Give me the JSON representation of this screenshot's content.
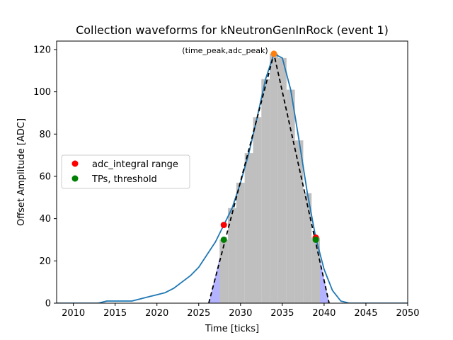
{
  "chart_data": {
    "type": "line",
    "title": "Collection waveforms for kNeutronGenInRock (event 1)",
    "xlabel": "Time [ticks]",
    "ylabel": "Offset Amplitude [ADC]",
    "xlim": [
      2008,
      2050
    ],
    "ylim": [
      0,
      124
    ],
    "xticks": [
      2010,
      2015,
      2020,
      2025,
      2030,
      2035,
      2040,
      2045,
      2050
    ],
    "yticks": [
      0,
      20,
      40,
      60,
      80,
      100,
      120
    ],
    "grid": false,
    "legend_position": "center-left",
    "legend": [
      {
        "label": "adc_integral range",
        "color": "#ff0000"
      },
      {
        "label": "TPs, threshold",
        "color": "#008000"
      }
    ],
    "waveform": {
      "color": "#1f77b4",
      "x": [
        2008,
        2009,
        2010,
        2011,
        2012,
        2013,
        2014,
        2015,
        2016,
        2017,
        2018,
        2019,
        2020,
        2021,
        2022,
        2023,
        2024,
        2025,
        2026,
        2027,
        2028,
        2029,
        2030,
        2031,
        2032,
        2033,
        2034,
        2035,
        2036,
        2037,
        2038,
        2039,
        2040,
        2041,
        2042,
        2043,
        2044,
        2045,
        2046,
        2047,
        2048,
        2049,
        2050
      ],
      "y": [
        0,
        0,
        0,
        0,
        0,
        0,
        1,
        1,
        1,
        1,
        2,
        3,
        4,
        5,
        7,
        10,
        13,
        17,
        23,
        29,
        37,
        45,
        57,
        71,
        88,
        106,
        118,
        116,
        101,
        77,
        52,
        31,
        16,
        6,
        1,
        0,
        0,
        0,
        0,
        0,
        0,
        0,
        0
      ]
    },
    "bars": {
      "color": "#bfbfbf",
      "x": [
        2028,
        2029,
        2030,
        2031,
        2032,
        2033,
        2034,
        2035,
        2036,
        2037,
        2038,
        2039
      ],
      "values": [
        30,
        45,
        57,
        71,
        88,
        106,
        118,
        116,
        101,
        77,
        52,
        31
      ]
    },
    "shaded_edges": {
      "color": "#b3b3ff",
      "left": {
        "x": [
          2026.2,
          2028,
          2028
        ],
        "y": [
          0,
          30,
          0
        ]
      },
      "right": {
        "x": [
          2039,
          2039,
          2040.6
        ],
        "y": [
          31,
          0,
          0
        ]
      }
    },
    "triangle": {
      "color": "#000000",
      "x": [
        2026.2,
        2034,
        2040.6
      ],
      "y": [
        0,
        118,
        0
      ]
    },
    "adc_integral_points": {
      "color": "#ff0000",
      "x": [
        2028,
        2039
      ],
      "y": [
        37,
        31
      ]
    },
    "tp_points": {
      "color": "#008000",
      "x": [
        2028,
        2039
      ],
      "y": [
        30,
        30
      ]
    },
    "peak_point": {
      "color": "#ff7f0e",
      "x": 2034,
      "y": 118
    },
    "annotation": {
      "text": "(time_peak,adc_peak)",
      "x": 2034,
      "y": 118
    }
  }
}
